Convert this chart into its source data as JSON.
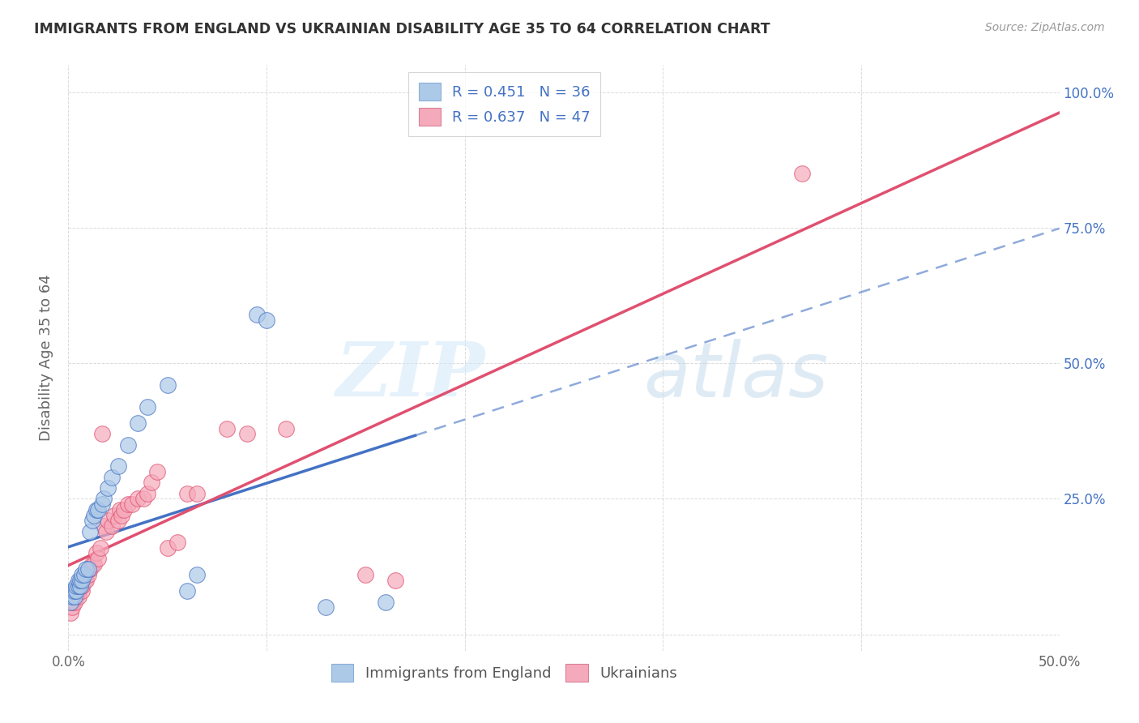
{
  "title": "IMMIGRANTS FROM ENGLAND VS UKRAINIAN DISABILITY AGE 35 TO 64 CORRELATION CHART",
  "source": "Source: ZipAtlas.com",
  "ylabel": "Disability Age 35 to 64",
  "xlim": [
    0.0,
    0.5
  ],
  "ylim": [
    -0.03,
    1.05
  ],
  "xtick_pos": [
    0.0,
    0.1,
    0.2,
    0.3,
    0.4,
    0.5
  ],
  "xticklabels": [
    "0.0%",
    "",
    "",
    "",
    "",
    "50.0%"
  ],
  "ytick_positions": [
    0.0,
    0.25,
    0.5,
    0.75,
    1.0
  ],
  "yticklabels_right": [
    "",
    "25.0%",
    "50.0%",
    "75.0%",
    "100.0%"
  ],
  "england_R": 0.451,
  "england_N": 36,
  "ukraine_R": 0.637,
  "ukraine_N": 47,
  "england_color": "#adc9e8",
  "ukraine_color": "#f5aabb",
  "england_line_color": "#4472c4",
  "ukraine_line_color": "#e05070",
  "england_scatter": [
    [
      0.001,
      0.06
    ],
    [
      0.002,
      0.07
    ],
    [
      0.002,
      0.08
    ],
    [
      0.003,
      0.07
    ],
    [
      0.003,
      0.08
    ],
    [
      0.004,
      0.08
    ],
    [
      0.004,
      0.09
    ],
    [
      0.005,
      0.09
    ],
    [
      0.005,
      0.1
    ],
    [
      0.006,
      0.09
    ],
    [
      0.006,
      0.1
    ],
    [
      0.007,
      0.1
    ],
    [
      0.007,
      0.11
    ],
    [
      0.008,
      0.11
    ],
    [
      0.009,
      0.12
    ],
    [
      0.01,
      0.12
    ],
    [
      0.011,
      0.19
    ],
    [
      0.012,
      0.21
    ],
    [
      0.013,
      0.22
    ],
    [
      0.014,
      0.23
    ],
    [
      0.015,
      0.23
    ],
    [
      0.017,
      0.24
    ],
    [
      0.018,
      0.25
    ],
    [
      0.02,
      0.27
    ],
    [
      0.022,
      0.29
    ],
    [
      0.025,
      0.31
    ],
    [
      0.03,
      0.35
    ],
    [
      0.035,
      0.39
    ],
    [
      0.04,
      0.42
    ],
    [
      0.05,
      0.46
    ],
    [
      0.06,
      0.08
    ],
    [
      0.065,
      0.11
    ],
    [
      0.095,
      0.59
    ],
    [
      0.1,
      0.58
    ],
    [
      0.13,
      0.05
    ],
    [
      0.16,
      0.06
    ]
  ],
  "ukraine_scatter": [
    [
      0.001,
      0.04
    ],
    [
      0.002,
      0.05
    ],
    [
      0.002,
      0.06
    ],
    [
      0.003,
      0.06
    ],
    [
      0.004,
      0.07
    ],
    [
      0.004,
      0.08
    ],
    [
      0.005,
      0.07
    ],
    [
      0.005,
      0.08
    ],
    [
      0.006,
      0.09
    ],
    [
      0.007,
      0.08
    ],
    [
      0.007,
      0.09
    ],
    [
      0.008,
      0.1
    ],
    [
      0.009,
      0.1
    ],
    [
      0.01,
      0.11
    ],
    [
      0.011,
      0.12
    ],
    [
      0.012,
      0.13
    ],
    [
      0.013,
      0.13
    ],
    [
      0.014,
      0.15
    ],
    [
      0.015,
      0.14
    ],
    [
      0.016,
      0.16
    ],
    [
      0.017,
      0.37
    ],
    [
      0.018,
      0.2
    ],
    [
      0.019,
      0.19
    ],
    [
      0.02,
      0.21
    ],
    [
      0.022,
      0.2
    ],
    [
      0.023,
      0.22
    ],
    [
      0.025,
      0.21
    ],
    [
      0.026,
      0.23
    ],
    [
      0.027,
      0.22
    ],
    [
      0.028,
      0.23
    ],
    [
      0.03,
      0.24
    ],
    [
      0.032,
      0.24
    ],
    [
      0.035,
      0.25
    ],
    [
      0.038,
      0.25
    ],
    [
      0.04,
      0.26
    ],
    [
      0.042,
      0.28
    ],
    [
      0.045,
      0.3
    ],
    [
      0.05,
      0.16
    ],
    [
      0.055,
      0.17
    ],
    [
      0.06,
      0.26
    ],
    [
      0.065,
      0.26
    ],
    [
      0.08,
      0.38
    ],
    [
      0.09,
      0.37
    ],
    [
      0.11,
      0.38
    ],
    [
      0.15,
      0.11
    ],
    [
      0.165,
      0.1
    ],
    [
      0.37,
      0.85
    ]
  ],
  "watermark_zip": "ZIP",
  "watermark_atlas": "atlas",
  "background_color": "#ffffff",
  "grid_color": "#cccccc",
  "title_color": "#333333",
  "axis_label_color": "#666666",
  "right_tick_color": "#4472c4",
  "legend_label_color": "#4472c4"
}
